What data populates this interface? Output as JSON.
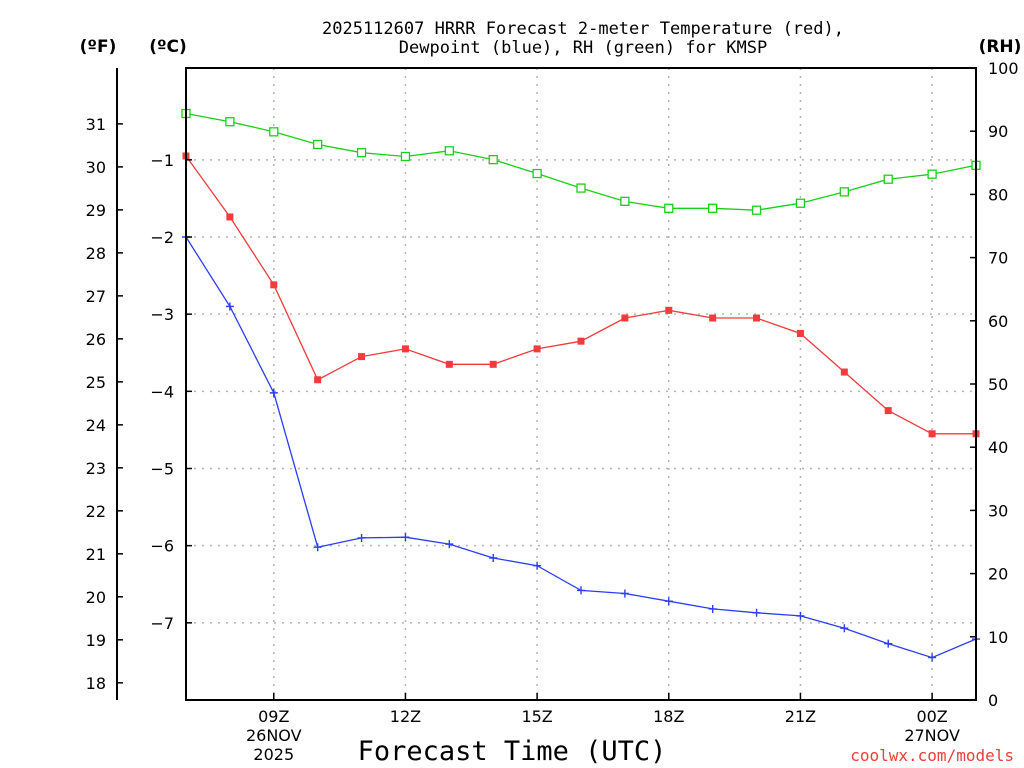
{
  "chart_data": {
    "type": "line",
    "title_lines": [
      "2025112607 HRRR Forecast 2-meter Temperature (red),",
      "Dewpoint (blue), RH (green) for KMSP"
    ],
    "xlabel": "Forecast Time (UTC)",
    "credit": "coolwx.com/models",
    "x_hours": [
      7,
      8,
      9,
      10,
      11,
      12,
      13,
      14,
      15,
      16,
      17,
      18,
      19,
      20,
      21,
      22,
      23,
      24,
      25
    ],
    "x_range": [
      7,
      25
    ],
    "x_ticks": [
      {
        "hour": 9,
        "lines": [
          "09Z",
          "26NOV",
          "2025"
        ]
      },
      {
        "hour": 12,
        "lines": [
          "12Z"
        ]
      },
      {
        "hour": 15,
        "lines": [
          "15Z"
        ]
      },
      {
        "hour": 18,
        "lines": [
          "18Z"
        ]
      },
      {
        "hour": 21,
        "lines": [
          "21Z"
        ]
      },
      {
        "hour": 24,
        "lines": [
          "00Z",
          "27NOV"
        ]
      }
    ],
    "axes": {
      "fahrenheit": {
        "unit_label": "(ºF)",
        "range": [
          17.6,
          32.3
        ],
        "ticks": [
          18,
          19,
          20,
          21,
          22,
          23,
          24,
          25,
          26,
          27,
          28,
          29,
          30,
          31
        ]
      },
      "celsius": {
        "unit_label": "(ºC)",
        "range": [
          -8,
          0.19
        ],
        "ticks": [
          -1,
          -2,
          -3,
          -4,
          -5,
          -6,
          -7
        ],
        "tick_labels": [
          "−1",
          "−2",
          "−3",
          "−4",
          "−5",
          "−6",
          "−7"
        ]
      },
      "rh": {
        "unit_label": "(RH)",
        "range": [
          0,
          100
        ],
        "ticks": [
          0,
          10,
          20,
          30,
          40,
          50,
          60,
          70,
          80,
          90,
          100
        ]
      }
    },
    "series": [
      {
        "name": "2-meter Temperature",
        "color": "#f03c3c",
        "marker": "filled-square",
        "axis": "celsius",
        "values": [
          -0.95,
          -1.74,
          -2.62,
          -3.85,
          -3.55,
          -3.45,
          -3.65,
          -3.65,
          -3.45,
          -3.35,
          -3.05,
          -2.95,
          -3.05,
          -3.05,
          -3.25,
          -3.75,
          -4.25,
          -4.55,
          -4.55
        ]
      },
      {
        "name": "Dewpoint",
        "color": "#2a3ef0",
        "marker": "plus",
        "axis": "celsius",
        "values": [
          -2.0,
          -2.9,
          -4.02,
          -6.02,
          -5.9,
          -5.89,
          -5.98,
          -6.16,
          -6.26,
          -6.58,
          -6.62,
          -6.72,
          -6.82,
          -6.87,
          -6.91,
          -7.07,
          -7.27,
          -7.45,
          -7.21
        ]
      },
      {
        "name": "RH",
        "color": "#18d018",
        "marker": "open-square",
        "axis": "rh",
        "values": [
          92.8,
          91.5,
          89.9,
          87.9,
          86.6,
          86.0,
          86.9,
          85.5,
          83.3,
          81.0,
          78.9,
          77.8,
          77.8,
          77.5,
          78.6,
          80.4,
          82.4,
          83.2,
          84.6
        ]
      }
    ],
    "grid": true,
    "legend": "in title"
  }
}
